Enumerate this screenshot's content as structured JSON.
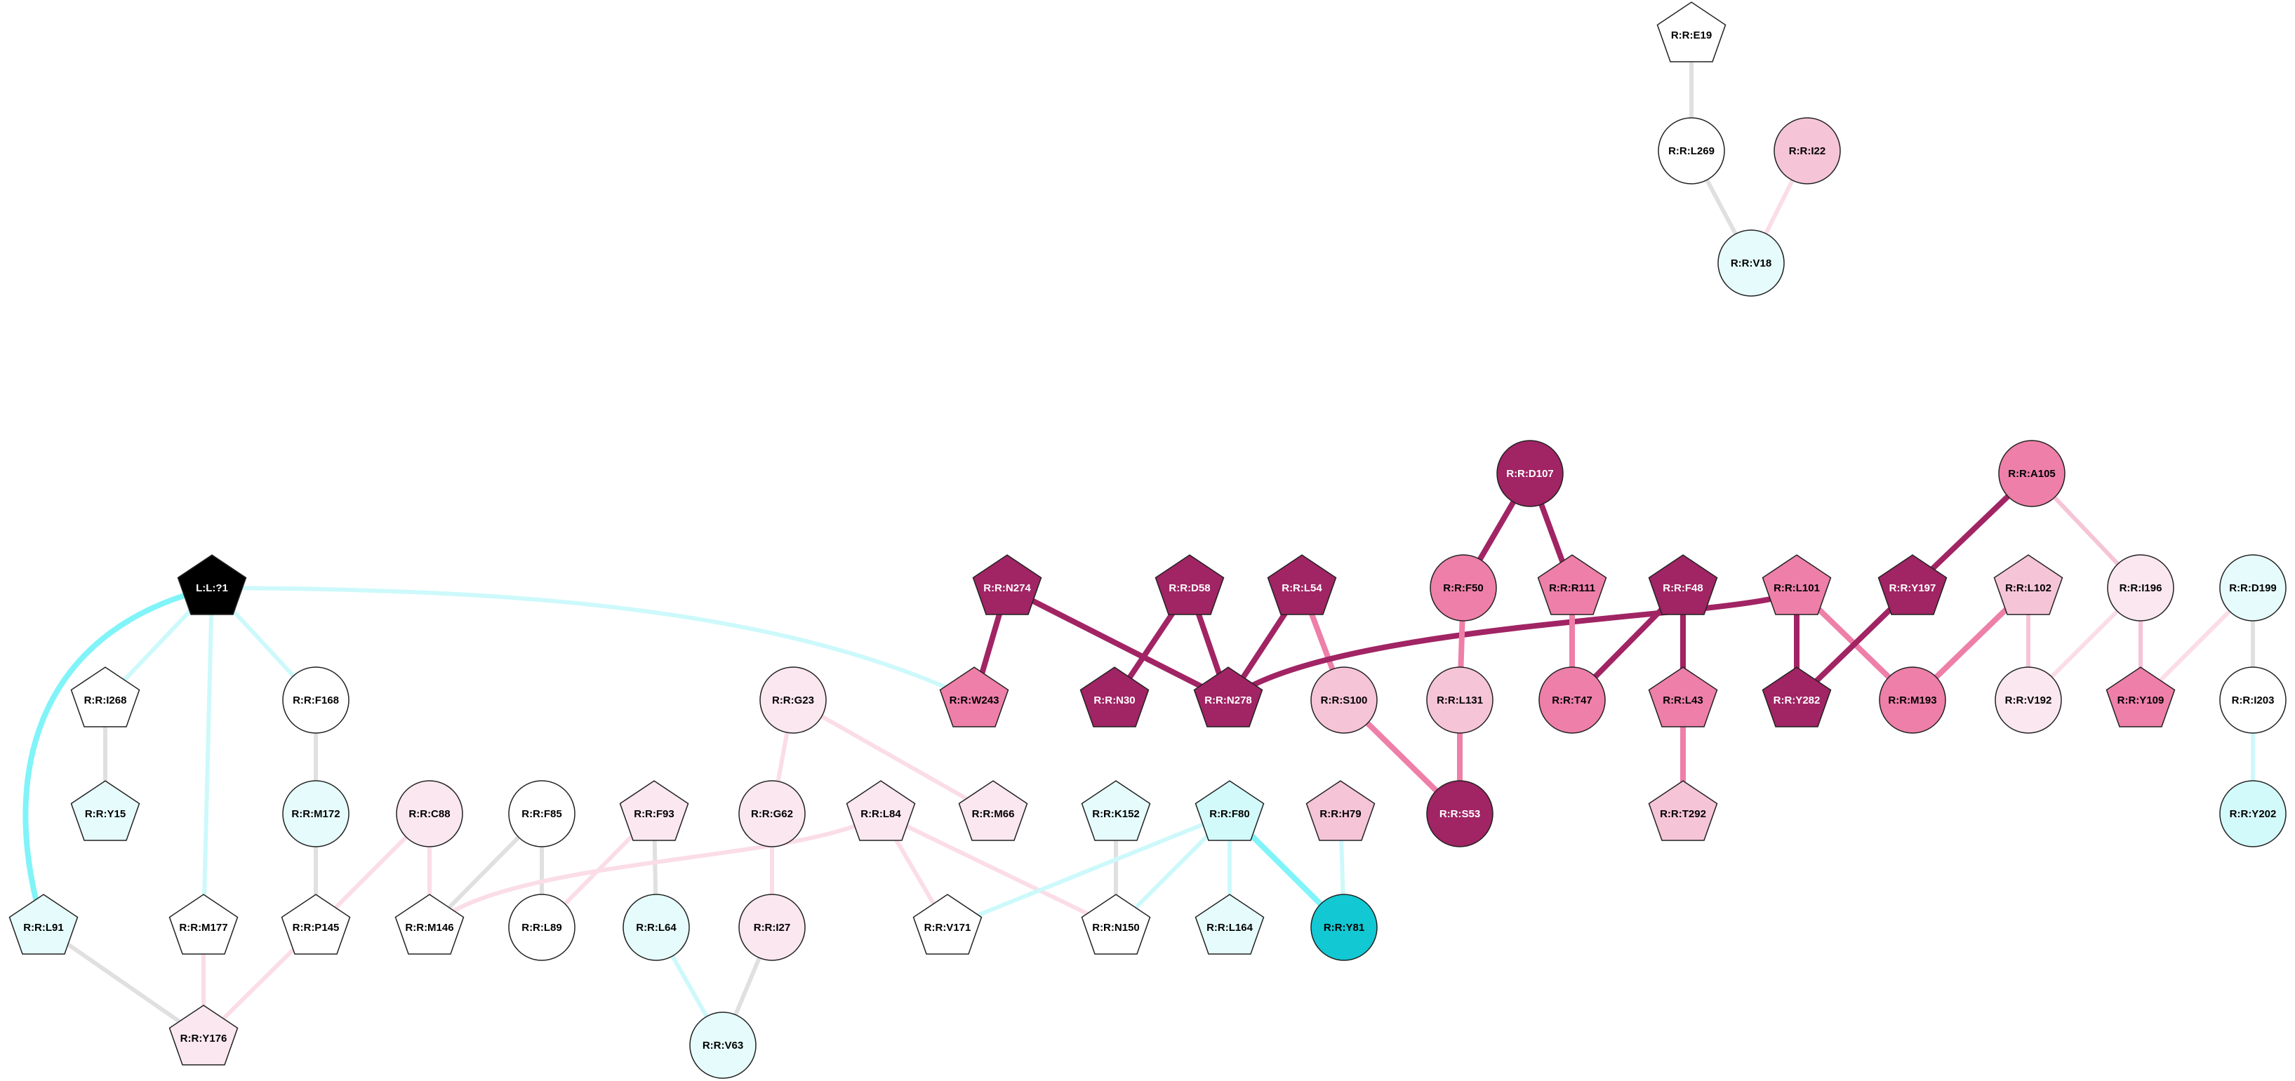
{
  "palette": {
    "white": "#ffffff",
    "black": "#000000",
    "cyan": "#12c8d3",
    "cyan_light": "#e6fcfc",
    "cyan_mid": "#d3fafb",
    "pink_pale": "#fbe7ef",
    "pink_light": "#f6c4d7",
    "pink_mid": "#ee7fa8",
    "magenta": "#a12464",
    "edge_gray": "#e0e0e0",
    "edge_cyan": "#80f4f8",
    "edge_cyan_light": "#cdf9fb",
    "edge_pink_pale": "#fbdde7",
    "edge_pink_light": "#f6c4d7",
    "edge_pink_mid": "#ee7fa8",
    "edge_magenta": "#a12464"
  },
  "nodes": [
    {
      "id": "E19",
      "label": "R:R:E19",
      "shape": "pentagon",
      "fill": "white"
    },
    {
      "id": "L269",
      "label": "R:R:L269",
      "shape": "circle",
      "fill": "white"
    },
    {
      "id": "I22",
      "label": "R:R:I22",
      "shape": "circle",
      "fill": "pink_light"
    },
    {
      "id": "V18",
      "label": "R:R:V18",
      "shape": "circle",
      "fill": "cyan_light"
    },
    {
      "id": "D107",
      "label": "R:R:D107",
      "shape": "circle",
      "fill": "magenta"
    },
    {
      "id": "A105",
      "label": "R:R:A105",
      "shape": "circle",
      "fill": "pink_mid"
    },
    {
      "id": "L1",
      "label": "L:L:?1",
      "shape": "pentagon",
      "fill": "black"
    },
    {
      "id": "N274",
      "label": "R:R:N274",
      "shape": "pentagon",
      "fill": "magenta"
    },
    {
      "id": "D58",
      "label": "R:R:D58",
      "shape": "pentagon",
      "fill": "magenta"
    },
    {
      "id": "L54",
      "label": "R:R:L54",
      "shape": "pentagon",
      "fill": "magenta"
    },
    {
      "id": "F50",
      "label": "R:R:F50",
      "shape": "circle",
      "fill": "pink_mid"
    },
    {
      "id": "R111",
      "label": "R:R:R111",
      "shape": "pentagon",
      "fill": "pink_mid"
    },
    {
      "id": "F48",
      "label": "R:R:F48",
      "shape": "pentagon",
      "fill": "magenta"
    },
    {
      "id": "L101",
      "label": "R:R:L101",
      "shape": "pentagon",
      "fill": "pink_mid"
    },
    {
      "id": "Y197",
      "label": "R:R:Y197",
      "shape": "pentagon",
      "fill": "magenta"
    },
    {
      "id": "L102",
      "label": "R:R:L102",
      "shape": "pentagon",
      "fill": "pink_light"
    },
    {
      "id": "I196",
      "label": "R:R:I196",
      "shape": "circle",
      "fill": "pink_pale"
    },
    {
      "id": "D199",
      "label": "R:R:D199",
      "shape": "circle",
      "fill": "cyan_light"
    },
    {
      "id": "I268",
      "label": "R:R:I268",
      "shape": "pentagon",
      "fill": "white"
    },
    {
      "id": "F168",
      "label": "R:R:F168",
      "shape": "circle",
      "fill": "white"
    },
    {
      "id": "G23",
      "label": "R:R:G23",
      "shape": "circle",
      "fill": "pink_pale"
    },
    {
      "id": "W243",
      "label": "R:R:W243",
      "shape": "pentagon",
      "fill": "pink_mid"
    },
    {
      "id": "N30",
      "label": "R:R:N30",
      "shape": "pentagon",
      "fill": "magenta"
    },
    {
      "id": "N278",
      "label": "R:R:N278",
      "shape": "pentagon",
      "fill": "magenta"
    },
    {
      "id": "S100",
      "label": "R:R:S100",
      "shape": "circle",
      "fill": "pink_light"
    },
    {
      "id": "L131",
      "label": "R:R:L131",
      "shape": "circle",
      "fill": "pink_light"
    },
    {
      "id": "T47",
      "label": "R:R:T47",
      "shape": "circle",
      "fill": "pink_mid"
    },
    {
      "id": "L43",
      "label": "R:R:L43",
      "shape": "pentagon",
      "fill": "pink_mid"
    },
    {
      "id": "Y282",
      "label": "R:R:Y282",
      "shape": "pentagon",
      "fill": "magenta"
    },
    {
      "id": "M193",
      "label": "R:R:M193",
      "shape": "circle",
      "fill": "pink_mid"
    },
    {
      "id": "V192",
      "label": "R:R:V192",
      "shape": "circle",
      "fill": "pink_pale"
    },
    {
      "id": "Y109",
      "label": "R:R:Y109",
      "shape": "pentagon",
      "fill": "pink_mid"
    },
    {
      "id": "I203",
      "label": "R:R:I203",
      "shape": "circle",
      "fill": "white"
    },
    {
      "id": "Y15",
      "label": "R:R:Y15",
      "shape": "pentagon",
      "fill": "cyan_light"
    },
    {
      "id": "M172",
      "label": "R:R:M172",
      "shape": "circle",
      "fill": "cyan_light"
    },
    {
      "id": "C88",
      "label": "R:R:C88",
      "shape": "circle",
      "fill": "pink_pale"
    },
    {
      "id": "F85",
      "label": "R:R:F85",
      "shape": "circle",
      "fill": "white"
    },
    {
      "id": "F93",
      "label": "R:R:F93",
      "shape": "pentagon",
      "fill": "pink_pale"
    },
    {
      "id": "G62",
      "label": "R:R:G62",
      "shape": "circle",
      "fill": "pink_pale"
    },
    {
      "id": "L84",
      "label": "R:R:L84",
      "shape": "pentagon",
      "fill": "pink_pale"
    },
    {
      "id": "M66",
      "label": "R:R:M66",
      "shape": "pentagon",
      "fill": "pink_pale"
    },
    {
      "id": "K152",
      "label": "R:R:K152",
      "shape": "pentagon",
      "fill": "cyan_light"
    },
    {
      "id": "F80",
      "label": "R:R:F80",
      "shape": "pentagon",
      "fill": "cyan_mid"
    },
    {
      "id": "H79",
      "label": "R:R:H79",
      "shape": "pentagon",
      "fill": "pink_light"
    },
    {
      "id": "S53",
      "label": "R:R:S53",
      "shape": "circle",
      "fill": "magenta"
    },
    {
      "id": "T292",
      "label": "R:R:T292",
      "shape": "pentagon",
      "fill": "pink_light"
    },
    {
      "id": "Y202",
      "label": "R:R:Y202",
      "shape": "circle",
      "fill": "cyan_mid"
    },
    {
      "id": "L91",
      "label": "R:R:L91",
      "shape": "pentagon",
      "fill": "cyan_light"
    },
    {
      "id": "M177",
      "label": "R:R:M177",
      "shape": "pentagon",
      "fill": "white"
    },
    {
      "id": "P145",
      "label": "R:R:P145",
      "shape": "pentagon",
      "fill": "white"
    },
    {
      "id": "M146",
      "label": "R:R:M146",
      "shape": "pentagon",
      "fill": "white"
    },
    {
      "id": "L89",
      "label": "R:R:L89",
      "shape": "circle",
      "fill": "white"
    },
    {
      "id": "L64",
      "label": "R:R:L64",
      "shape": "circle",
      "fill": "cyan_light"
    },
    {
      "id": "I27",
      "label": "R:R:I27",
      "shape": "circle",
      "fill": "pink_pale"
    },
    {
      "id": "V171",
      "label": "R:R:V171",
      "shape": "pentagon",
      "fill": "white"
    },
    {
      "id": "N150",
      "label": "R:R:N150",
      "shape": "pentagon",
      "fill": "white"
    },
    {
      "id": "L164",
      "label": "R:R:L164",
      "shape": "pentagon",
      "fill": "cyan_light"
    },
    {
      "id": "Y81",
      "label": "R:R:Y81",
      "shape": "circle",
      "fill": "cyan"
    },
    {
      "id": "Y176",
      "label": "R:R:Y176",
      "shape": "pentagon",
      "fill": "pink_pale"
    },
    {
      "id": "V63",
      "label": "R:R:V63",
      "shape": "circle",
      "fill": "cyan_light"
    }
  ],
  "edges": [
    {
      "from": "E19",
      "to": "L269",
      "color": "edge_gray",
      "weight": 2
    },
    {
      "from": "L269",
      "to": "V18",
      "color": "edge_gray",
      "weight": 2
    },
    {
      "from": "I22",
      "to": "V18",
      "color": "edge_pink_pale",
      "weight": 2
    },
    {
      "from": "D107",
      "to": "F50",
      "color": "edge_magenta",
      "weight": 3
    },
    {
      "from": "D107",
      "to": "R111",
      "color": "edge_magenta",
      "weight": 3
    },
    {
      "from": "A105",
      "to": "Y197",
      "color": "edge_magenta",
      "weight": 3
    },
    {
      "from": "A105",
      "to": "I196",
      "color": "edge_pink_light",
      "weight": 2
    },
    {
      "from": "L1",
      "to": "L91",
      "color": "edge_cyan",
      "weight": 3
    },
    {
      "from": "L1",
      "to": "I268",
      "color": "edge_cyan_light",
      "weight": 2
    },
    {
      "from": "L1",
      "to": "M177",
      "color": "edge_cyan_light",
      "weight": 2
    },
    {
      "from": "L1",
      "to": "F168",
      "color": "edge_cyan_light",
      "weight": 2
    },
    {
      "from": "L1",
      "to": "W243",
      "color": "edge_cyan_light",
      "weight": 2
    },
    {
      "from": "N274",
      "to": "W243",
      "color": "edge_magenta",
      "weight": 3
    },
    {
      "from": "N274",
      "to": "N278",
      "color": "edge_magenta",
      "weight": 3
    },
    {
      "from": "D58",
      "to": "N30",
      "color": "edge_magenta",
      "weight": 3
    },
    {
      "from": "D58",
      "to": "N278",
      "color": "edge_magenta",
      "weight": 3
    },
    {
      "from": "L54",
      "to": "N278",
      "color": "edge_magenta",
      "weight": 3
    },
    {
      "from": "L54",
      "to": "S100",
      "color": "edge_pink_mid",
      "weight": 3
    },
    {
      "from": "L101",
      "to": "N278",
      "color": "edge_magenta",
      "weight": 3
    },
    {
      "from": "F50",
      "to": "L131",
      "color": "edge_pink_mid",
      "weight": 3
    },
    {
      "from": "R111",
      "to": "T47",
      "color": "edge_pink_mid",
      "weight": 3
    },
    {
      "from": "F48",
      "to": "T47",
      "color": "edge_magenta",
      "weight": 3
    },
    {
      "from": "F48",
      "to": "L43",
      "color": "edge_magenta",
      "weight": 3
    },
    {
      "from": "L101",
      "to": "Y282",
      "color": "edge_magenta",
      "weight": 3
    },
    {
      "from": "L101",
      "to": "M193",
      "color": "edge_pink_mid",
      "weight": 3
    },
    {
      "from": "Y197",
      "to": "Y282",
      "color": "edge_magenta",
      "weight": 3
    },
    {
      "from": "L102",
      "to": "M193",
      "color": "edge_pink_mid",
      "weight": 3
    },
    {
      "from": "L102",
      "to": "V192",
      "color": "edge_pink_light",
      "weight": 2
    },
    {
      "from": "I196",
      "to": "V192",
      "color": "edge_pink_pale",
      "weight": 2
    },
    {
      "from": "I196",
      "to": "Y109",
      "color": "edge_pink_light",
      "weight": 2
    },
    {
      "from": "D199",
      "to": "Y109",
      "color": "edge_pink_pale",
      "weight": 2
    },
    {
      "from": "D199",
      "to": "I203",
      "color": "edge_gray",
      "weight": 2
    },
    {
      "from": "I203",
      "to": "Y202",
      "color": "edge_cyan_light",
      "weight": 2
    },
    {
      "from": "S100",
      "to": "S53",
      "color": "edge_pink_mid",
      "weight": 3
    },
    {
      "from": "L131",
      "to": "S53",
      "color": "edge_pink_mid",
      "weight": 3
    },
    {
      "from": "L43",
      "to": "T292",
      "color": "edge_pink_mid",
      "weight": 3
    },
    {
      "from": "I268",
      "to": "Y15",
      "color": "edge_gray",
      "weight": 2
    },
    {
      "from": "F168",
      "to": "M172",
      "color": "edge_gray",
      "weight": 2
    },
    {
      "from": "M172",
      "to": "P145",
      "color": "edge_gray",
      "weight": 2
    },
    {
      "from": "C88",
      "to": "P145",
      "color": "edge_pink_pale",
      "weight": 2
    },
    {
      "from": "C88",
      "to": "M146",
      "color": "edge_pink_pale",
      "weight": 2
    },
    {
      "from": "F85",
      "to": "M146",
      "color": "edge_gray",
      "weight": 2
    },
    {
      "from": "F85",
      "to": "L89",
      "color": "edge_gray",
      "weight": 2
    },
    {
      "from": "F93",
      "to": "L89",
      "color": "edge_pink_pale",
      "weight": 2
    },
    {
      "from": "F93",
      "to": "L64",
      "color": "edge_gray",
      "weight": 2
    },
    {
      "from": "L84",
      "to": "M146",
      "color": "edge_pink_pale",
      "weight": 2
    },
    {
      "from": "L84",
      "to": "V171",
      "color": "edge_pink_pale",
      "weight": 2
    },
    {
      "from": "L84",
      "to": "N150",
      "color": "edge_pink_pale",
      "weight": 2
    },
    {
      "from": "G23",
      "to": "G62",
      "color": "edge_pink_pale",
      "weight": 2
    },
    {
      "from": "G23",
      "to": "M66",
      "color": "edge_pink_pale",
      "weight": 2
    },
    {
      "from": "G62",
      "to": "I27",
      "color": "edge_pink_pale",
      "weight": 2
    },
    {
      "from": "I27",
      "to": "V63",
      "color": "edge_gray",
      "weight": 2
    },
    {
      "from": "L64",
      "to": "V63",
      "color": "edge_cyan_light",
      "weight": 2
    },
    {
      "from": "K152",
      "to": "N150",
      "color": "edge_gray",
      "weight": 2
    },
    {
      "from": "F80",
      "to": "V171",
      "color": "edge_cyan_light",
      "weight": 2
    },
    {
      "from": "F80",
      "to": "N150",
      "color": "edge_cyan_light",
      "weight": 2
    },
    {
      "from": "F80",
      "to": "L164",
      "color": "edge_cyan_light",
      "weight": 2
    },
    {
      "from": "F80",
      "to": "Y81",
      "color": "edge_cyan",
      "weight": 3
    },
    {
      "from": "H79",
      "to": "Y81",
      "color": "edge_cyan_light",
      "weight": 2
    },
    {
      "from": "L91",
      "to": "Y176",
      "color": "edge_gray",
      "weight": 2
    },
    {
      "from": "M177",
      "to": "Y176",
      "color": "edge_pink_pale",
      "weight": 2
    },
    {
      "from": "P145",
      "to": "Y176",
      "color": "edge_pink_pale",
      "weight": 2
    }
  ]
}
